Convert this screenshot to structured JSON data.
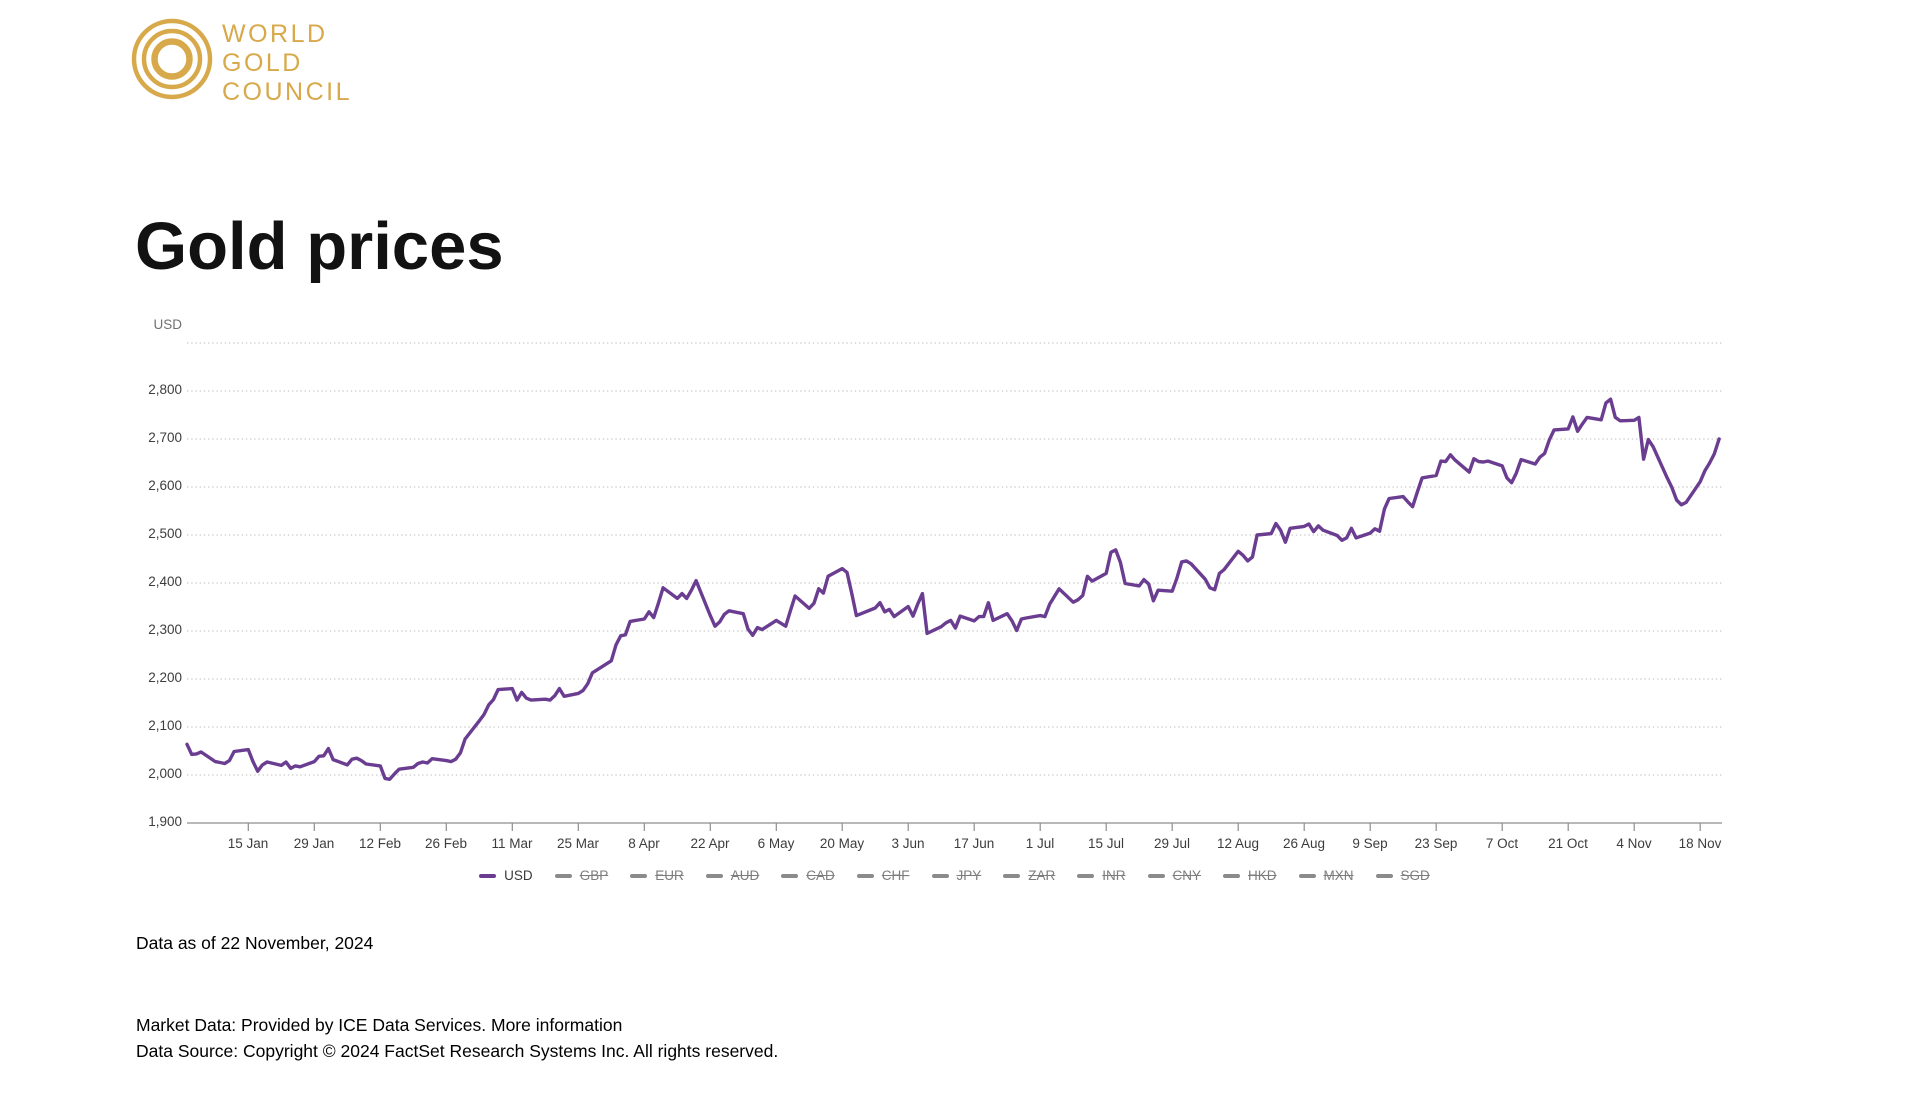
{
  "logo": {
    "line1": "WORLD",
    "line2": "GOLD",
    "line3": "COUNCIL"
  },
  "page_title": "Gold prices",
  "colors": {
    "brand_gold": "#d7a94b",
    "series_purple": "#6a3d91",
    "grid": "#bdbdbd",
    "axis": "#8d8d8d",
    "tick_text": "#3d3d3d",
    "muted_text": "#707070",
    "inactive_legend": "#8b8b8b"
  },
  "chart_data": {
    "type": "line",
    "title": "",
    "y_axis": {
      "title": "USD",
      "min": 1900,
      "max": 2900,
      "grid_values": [
        2900,
        2800,
        2700,
        2600,
        2500,
        2400,
        2300,
        2200,
        2100,
        2000
      ],
      "tick_values": [
        2800,
        2700,
        2600,
        2500,
        2400,
        2300,
        2200,
        2100,
        2000,
        1900
      ],
      "tick_labels": [
        "2,800",
        "2,700",
        "2,600",
        "2,500",
        "2,400",
        "2,300",
        "2,200",
        "2,100",
        "2,000",
        "1,900"
      ]
    },
    "x_axis": {
      "start_label_date": "2 Jan 2024",
      "end_label_date": "22 Nov 2024",
      "total_days": 325,
      "tick_day_offsets": [
        13,
        27,
        41,
        55,
        69,
        83,
        97,
        111,
        125,
        139,
        153,
        167,
        181,
        195,
        209,
        223,
        237,
        251,
        265,
        279,
        293,
        307,
        321
      ],
      "tick_labels": [
        "15 Jan",
        "29 Jan",
        "12 Feb",
        "26 Feb",
        "11 Mar",
        "25 Mar",
        "8 Apr",
        "22 Apr",
        "6 May",
        "20 May",
        "3 Jun",
        "17 Jun",
        "1 Jul",
        "15 Jul",
        "29 Jul",
        "12 Aug",
        "26 Aug",
        "9 Sep",
        "23 Sep",
        "7 Oct",
        "21 Oct",
        "4 Nov",
        "18 Nov"
      ]
    },
    "series": [
      {
        "name": "USD",
        "color": "#6a3d91",
        "points": [
          [
            0,
            2064
          ],
          [
            1,
            2043
          ],
          [
            2,
            2044
          ],
          [
            3,
            2048
          ],
          [
            6,
            2028
          ],
          [
            7,
            2026
          ],
          [
            8,
            2024
          ],
          [
            9,
            2030
          ],
          [
            10,
            2049
          ],
          [
            13,
            2053
          ],
          [
            14,
            2028
          ],
          [
            15,
            2008
          ],
          [
            16,
            2021
          ],
          [
            17,
            2027
          ],
          [
            20,
            2020
          ],
          [
            21,
            2027
          ],
          [
            22,
            2014
          ],
          [
            23,
            2019
          ],
          [
            24,
            2017
          ],
          [
            27,
            2028
          ],
          [
            28,
            2039
          ],
          [
            29,
            2040
          ],
          [
            30,
            2055
          ],
          [
            31,
            2032
          ],
          [
            34,
            2021
          ],
          [
            35,
            2033
          ],
          [
            36,
            2035
          ],
          [
            37,
            2030
          ],
          [
            38,
            2023
          ],
          [
            41,
            2019
          ],
          [
            42,
            1993
          ],
          [
            43,
            1991
          ],
          [
            44,
            2002
          ],
          [
            45,
            2012
          ],
          [
            48,
            2016
          ],
          [
            49,
            2024
          ],
          [
            50,
            2027
          ],
          [
            51,
            2025
          ],
          [
            52,
            2034
          ],
          [
            55,
            2030
          ],
          [
            56,
            2028
          ],
          [
            57,
            2033
          ],
          [
            58,
            2046
          ],
          [
            59,
            2075
          ],
          [
            62,
            2113
          ],
          [
            63,
            2126
          ],
          [
            64,
            2146
          ],
          [
            65,
            2157
          ],
          [
            66,
            2178
          ],
          [
            69,
            2180
          ],
          [
            70,
            2156
          ],
          [
            71,
            2172
          ],
          [
            72,
            2160
          ],
          [
            73,
            2156
          ],
          [
            76,
            2158
          ],
          [
            77,
            2156
          ],
          [
            78,
            2165
          ],
          [
            79,
            2180
          ],
          [
            80,
            2164
          ],
          [
            83,
            2170
          ],
          [
            84,
            2176
          ],
          [
            85,
            2190
          ],
          [
            86,
            2213
          ],
          [
            90,
            2238
          ],
          [
            91,
            2271
          ],
          [
            92,
            2290
          ],
          [
            93,
            2292
          ],
          [
            94,
            2320
          ],
          [
            97,
            2325
          ],
          [
            98,
            2340
          ],
          [
            99,
            2328
          ],
          [
            100,
            2358
          ],
          [
            101,
            2390
          ],
          [
            104,
            2368
          ],
          [
            105,
            2378
          ],
          [
            106,
            2368
          ],
          [
            107,
            2385
          ],
          [
            108,
            2405
          ],
          [
            111,
            2332
          ],
          [
            112,
            2310
          ],
          [
            113,
            2319
          ],
          [
            114,
            2335
          ],
          [
            115,
            2342
          ],
          [
            118,
            2336
          ],
          [
            119,
            2304
          ],
          [
            120,
            2291
          ],
          [
            121,
            2307
          ],
          [
            122,
            2303
          ],
          [
            125,
            2322
          ],
          [
            126,
            2316
          ],
          [
            127,
            2310
          ],
          [
            128,
            2342
          ],
          [
            129,
            2373
          ],
          [
            132,
            2347
          ],
          [
            133,
            2358
          ],
          [
            134,
            2388
          ],
          [
            135,
            2379
          ],
          [
            136,
            2414
          ],
          [
            139,
            2430
          ],
          [
            140,
            2422
          ],
          [
            141,
            2379
          ],
          [
            142,
            2332
          ],
          [
            143,
            2336
          ],
          [
            146,
            2348
          ],
          [
            147,
            2359
          ],
          [
            148,
            2340
          ],
          [
            149,
            2345
          ],
          [
            150,
            2330
          ],
          [
            153,
            2351
          ],
          [
            154,
            2331
          ],
          [
            155,
            2356
          ],
          [
            156,
            2378
          ],
          [
            157,
            2295
          ],
          [
            160,
            2309
          ],
          [
            161,
            2317
          ],
          [
            162,
            2322
          ],
          [
            163,
            2306
          ],
          [
            164,
            2331
          ],
          [
            167,
            2321
          ],
          [
            168,
            2330
          ],
          [
            169,
            2330
          ],
          [
            170,
            2359
          ],
          [
            171,
            2322
          ],
          [
            174,
            2336
          ],
          [
            175,
            2321
          ],
          [
            176,
            2301
          ],
          [
            177,
            2325
          ],
          [
            178,
            2327
          ],
          [
            181,
            2332
          ],
          [
            182,
            2330
          ],
          [
            183,
            2356
          ],
          [
            185,
            2388
          ],
          [
            188,
            2360
          ],
          [
            189,
            2365
          ],
          [
            190,
            2374
          ],
          [
            191,
            2414
          ],
          [
            192,
            2404
          ],
          [
            195,
            2420
          ],
          [
            196,
            2464
          ],
          [
            197,
            2469
          ],
          [
            198,
            2443
          ],
          [
            199,
            2399
          ],
          [
            202,
            2394
          ],
          [
            203,
            2407
          ],
          [
            204,
            2398
          ],
          [
            205,
            2363
          ],
          [
            206,
            2385
          ],
          [
            209,
            2383
          ],
          [
            210,
            2410
          ],
          [
            211,
            2444
          ],
          [
            212,
            2446
          ],
          [
            213,
            2440
          ],
          [
            216,
            2408
          ],
          [
            217,
            2390
          ],
          [
            218,
            2386
          ],
          [
            219,
            2420
          ],
          [
            220,
            2428
          ],
          [
            223,
            2466
          ],
          [
            224,
            2458
          ],
          [
            225,
            2446
          ],
          [
            226,
            2454
          ],
          [
            227,
            2500
          ],
          [
            230,
            2503
          ],
          [
            231,
            2524
          ],
          [
            232,
            2510
          ],
          [
            233,
            2485
          ],
          [
            234,
            2514
          ],
          [
            237,
            2518
          ],
          [
            238,
            2523
          ],
          [
            239,
            2507
          ],
          [
            240,
            2519
          ],
          [
            241,
            2510
          ],
          [
            244,
            2499
          ],
          [
            245,
            2489
          ],
          [
            246,
            2494
          ],
          [
            247,
            2514
          ],
          [
            248,
            2494
          ],
          [
            251,
            2504
          ],
          [
            252,
            2513
          ],
          [
            253,
            2508
          ],
          [
            254,
            2554
          ],
          [
            255,
            2576
          ],
          [
            258,
            2580
          ],
          [
            259,
            2569
          ],
          [
            260,
            2559
          ],
          [
            261,
            2590
          ],
          [
            262,
            2619
          ],
          [
            265,
            2624
          ],
          [
            266,
            2654
          ],
          [
            267,
            2653
          ],
          [
            268,
            2667
          ],
          [
            269,
            2656
          ],
          [
            272,
            2631
          ],
          [
            273,
            2659
          ],
          [
            274,
            2653
          ],
          [
            275,
            2652
          ],
          [
            276,
            2654
          ],
          [
            279,
            2644
          ],
          [
            280,
            2619
          ],
          [
            281,
            2609
          ],
          [
            282,
            2629
          ],
          [
            283,
            2657
          ],
          [
            286,
            2648
          ],
          [
            287,
            2662
          ],
          [
            288,
            2670
          ],
          [
            289,
            2698
          ],
          [
            290,
            2719
          ],
          [
            293,
            2721
          ],
          [
            294,
            2746
          ],
          [
            295,
            2716
          ],
          [
            296,
            2731
          ],
          [
            297,
            2745
          ],
          [
            300,
            2740
          ],
          [
            301,
            2775
          ],
          [
            302,
            2783
          ],
          [
            303,
            2745
          ],
          [
            304,
            2738
          ],
          [
            307,
            2739
          ],
          [
            308,
            2745
          ],
          [
            309,
            2658
          ],
          [
            310,
            2699
          ],
          [
            311,
            2684
          ],
          [
            314,
            2619
          ],
          [
            315,
            2599
          ],
          [
            316,
            2573
          ],
          [
            317,
            2563
          ],
          [
            318,
            2568
          ],
          [
            321,
            2611
          ],
          [
            322,
            2634
          ],
          [
            323,
            2650
          ],
          [
            324,
            2669
          ],
          [
            325,
            2700
          ]
        ]
      }
    ],
    "legend": [
      {
        "label": "USD",
        "active": true
      },
      {
        "label": "GBP",
        "active": false
      },
      {
        "label": "EUR",
        "active": false
      },
      {
        "label": "AUD",
        "active": false
      },
      {
        "label": "CAD",
        "active": false
      },
      {
        "label": "CHF",
        "active": false
      },
      {
        "label": "JPY",
        "active": false
      },
      {
        "label": "ZAR",
        "active": false
      },
      {
        "label": "INR",
        "active": false
      },
      {
        "label": "CNY",
        "active": false
      },
      {
        "label": "HKD",
        "active": false
      },
      {
        "label": "MXN",
        "active": false
      },
      {
        "label": "SGD",
        "active": false
      }
    ],
    "legend_position": "bottom",
    "grid": "horizontal-dotted"
  },
  "footer": {
    "data_as_of": "Data as of 22 November, 2024",
    "market_data_prefix": "Market Data: Provided by ICE Data Services. ",
    "market_data_link": "More information",
    "data_source": "Data Source: Copyright © 2024 FactSet Research Systems Inc. All rights reserved."
  }
}
